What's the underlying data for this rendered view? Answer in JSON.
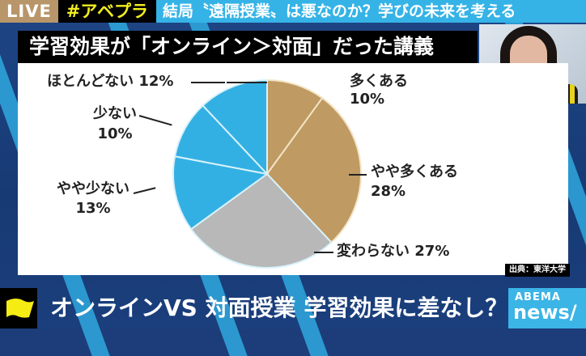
{
  "ticker": {
    "live_label": "LIVE",
    "hashtag": "#アベプラ",
    "headline": "結局〝遠隔授業〟は悪なのか？学びの未来を考える"
  },
  "panel": {
    "title": "学習効果が「オンライン＞対面」だった講義",
    "source": "出典：東洋大学"
  },
  "chart_data": {
    "type": "pie",
    "title": "学習効果が「オンライン＞対面」だった講義",
    "categories": [
      "多くある",
      "やや多くある",
      "変わらない",
      "やや少ない",
      "少ない",
      "ほとんどない"
    ],
    "values": [
      10,
      28,
      27,
      13,
      10,
      12
    ],
    "unit": "%",
    "colors": [
      "#bf9a63",
      "#bf9a63",
      "#b8b8b8",
      "#33b0e3",
      "#33b0e3",
      "#33b0e3"
    ],
    "start_angle": "12 o'clock, clockwise",
    "source": "出典：東洋大学"
  },
  "labels": {
    "l0_name": "多くある",
    "l0_pct": "10%",
    "l1_name": "やや多くある",
    "l1_pct": "28%",
    "l2_text": "変わらない 27%",
    "l3_name": "やや少ない",
    "l3_pct": "13%",
    "l4_name": "少ない",
    "l4_pct": "10%",
    "l5_text": "ほとんどない 12%"
  },
  "bottom": {
    "caption": "オンラインVS 対面授業 学習効果に差なし？",
    "logo_top": "ABEMA",
    "logo_bottom": "news/",
    "flag_color": "#f5ec13"
  }
}
